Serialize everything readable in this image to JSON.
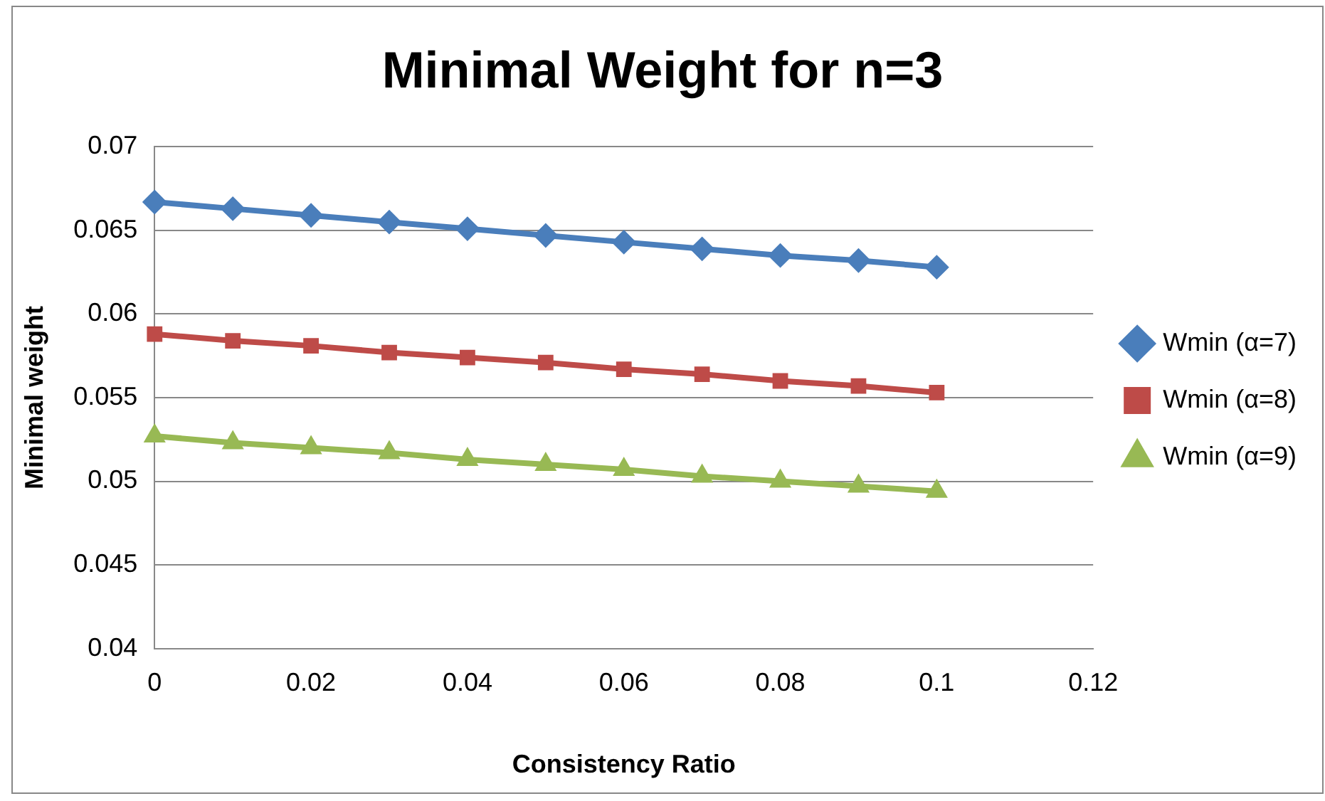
{
  "chart_data": {
    "type": "line",
    "title": "Minimal Weight for n=3",
    "xlabel": "Consistency Ratio",
    "ylabel": "Minimal weight",
    "x": [
      0,
      0.01,
      0.02,
      0.03,
      0.04,
      0.05,
      0.06,
      0.07,
      0.08,
      0.09,
      0.1
    ],
    "series": [
      {
        "name": "Wmin (α=7)",
        "color": "#4a7ebb",
        "marker": "diamond",
        "values": [
          0.0667,
          0.0663,
          0.0659,
          0.0655,
          0.0651,
          0.0647,
          0.0643,
          0.0639,
          0.0635,
          0.0632,
          0.0628
        ]
      },
      {
        "name": "Wmin (α=8)",
        "color": "#be4b48",
        "marker": "square",
        "values": [
          0.0588,
          0.0584,
          0.0581,
          0.0577,
          0.0574,
          0.0571,
          0.0567,
          0.0564,
          0.056,
          0.0557,
          0.0553
        ]
      },
      {
        "name": "Wmin (α=9)",
        "color": "#98b954",
        "marker": "triangle",
        "values": [
          0.0527,
          0.0523,
          0.052,
          0.0517,
          0.0513,
          0.051,
          0.0507,
          0.0503,
          0.05,
          0.0497,
          0.0494
        ]
      }
    ],
    "xlim": [
      0,
      0.12
    ],
    "xticks": [
      0,
      0.02,
      0.04,
      0.06,
      0.08,
      0.1,
      0.12
    ],
    "ylim": [
      0.04,
      0.07
    ],
    "yticks": [
      0.04,
      0.045,
      0.05,
      0.055,
      0.06,
      0.065,
      0.07
    ],
    "grid": "y",
    "legend": "right",
    "line_style": "solid"
  }
}
